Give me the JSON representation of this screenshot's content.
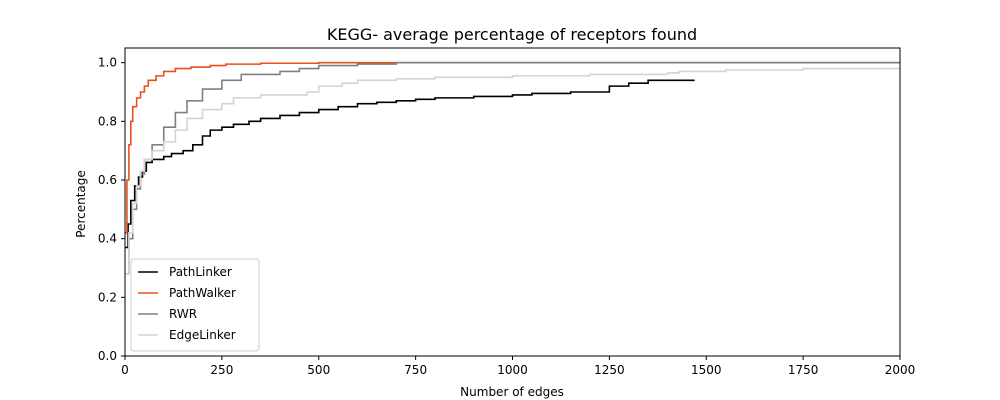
{
  "chart_data": {
    "type": "line",
    "title": "KEGG- average percentage of receptors found",
    "xlabel": "Number of edges",
    "ylabel": "Percentage",
    "xlim": [
      0,
      2000
    ],
    "ylim": [
      0.0,
      1.05
    ],
    "xticks": [
      0,
      250,
      500,
      750,
      1000,
      1250,
      1500,
      1750,
      2000
    ],
    "yticks": [
      0.0,
      0.2,
      0.4,
      0.6,
      0.8,
      1.0
    ],
    "ytick_labels": [
      "0.0",
      "0.2",
      "0.4",
      "0.6",
      "0.8",
      "1.0"
    ],
    "grid": false,
    "legend_position": "lower-left",
    "series": [
      {
        "name": "PathLinker",
        "color": "#000000",
        "step": true,
        "points": [
          [
            0,
            0.37
          ],
          [
            8,
            0.45
          ],
          [
            15,
            0.53
          ],
          [
            25,
            0.58
          ],
          [
            35,
            0.61
          ],
          [
            45,
            0.63
          ],
          [
            55,
            0.66
          ],
          [
            70,
            0.67
          ],
          [
            100,
            0.68
          ],
          [
            120,
            0.69
          ],
          [
            150,
            0.7
          ],
          [
            175,
            0.72
          ],
          [
            200,
            0.75
          ],
          [
            220,
            0.77
          ],
          [
            250,
            0.78
          ],
          [
            280,
            0.79
          ],
          [
            320,
            0.8
          ],
          [
            350,
            0.81
          ],
          [
            400,
            0.82
          ],
          [
            450,
            0.83
          ],
          [
            500,
            0.84
          ],
          [
            550,
            0.85
          ],
          [
            600,
            0.86
          ],
          [
            650,
            0.865
          ],
          [
            700,
            0.87
          ],
          [
            750,
            0.875
          ],
          [
            800,
            0.88
          ],
          [
            900,
            0.885
          ],
          [
            1000,
            0.89
          ],
          [
            1050,
            0.895
          ],
          [
            1150,
            0.9
          ],
          [
            1250,
            0.92
          ],
          [
            1300,
            0.93
          ],
          [
            1350,
            0.94
          ],
          [
            1470,
            0.94
          ]
        ]
      },
      {
        "name": "PathWalker",
        "color": "#e8501c",
        "step": true,
        "points": [
          [
            0,
            0.42
          ],
          [
            5,
            0.6
          ],
          [
            10,
            0.72
          ],
          [
            15,
            0.8
          ],
          [
            20,
            0.85
          ],
          [
            30,
            0.88
          ],
          [
            40,
            0.9
          ],
          [
            50,
            0.92
          ],
          [
            60,
            0.94
          ],
          [
            80,
            0.955
          ],
          [
            100,
            0.97
          ],
          [
            130,
            0.98
          ],
          [
            170,
            0.985
          ],
          [
            220,
            0.99
          ],
          [
            260,
            0.995
          ],
          [
            350,
            0.998
          ],
          [
            500,
            1.0
          ],
          [
            2000,
            1.0
          ]
        ]
      },
      {
        "name": "RWR",
        "color": "#808080",
        "step": true,
        "points": [
          [
            0,
            0.28
          ],
          [
            10,
            0.4
          ],
          [
            20,
            0.5
          ],
          [
            30,
            0.57
          ],
          [
            40,
            0.62
          ],
          [
            50,
            0.67
          ],
          [
            70,
            0.72
          ],
          [
            100,
            0.78
          ],
          [
            130,
            0.83
          ],
          [
            160,
            0.87
          ],
          [
            200,
            0.91
          ],
          [
            250,
            0.94
          ],
          [
            300,
            0.96
          ],
          [
            400,
            0.97
          ],
          [
            450,
            0.98
          ],
          [
            500,
            0.99
          ],
          [
            600,
            0.995
          ],
          [
            700,
            1.0
          ],
          [
            2000,
            1.0
          ]
        ]
      },
      {
        "name": "EdgeLinker",
        "color": "#d3d3d3",
        "step": true,
        "points": [
          [
            0,
            0.28
          ],
          [
            10,
            0.42
          ],
          [
            20,
            0.52
          ],
          [
            30,
            0.58
          ],
          [
            40,
            0.63
          ],
          [
            50,
            0.67
          ],
          [
            70,
            0.7
          ],
          [
            100,
            0.73
          ],
          [
            130,
            0.77
          ],
          [
            160,
            0.81
          ],
          [
            200,
            0.84
          ],
          [
            250,
            0.86
          ],
          [
            280,
            0.88
          ],
          [
            350,
            0.89
          ],
          [
            400,
            0.89
          ],
          [
            470,
            0.9
          ],
          [
            500,
            0.92
          ],
          [
            560,
            0.93
          ],
          [
            600,
            0.94
          ],
          [
            700,
            0.945
          ],
          [
            800,
            0.95
          ],
          [
            1000,
            0.955
          ],
          [
            1200,
            0.96
          ],
          [
            1400,
            0.965
          ],
          [
            1430,
            0.97
          ],
          [
            1550,
            0.975
          ],
          [
            1750,
            0.98
          ],
          [
            2000,
            0.98
          ]
        ]
      }
    ]
  }
}
